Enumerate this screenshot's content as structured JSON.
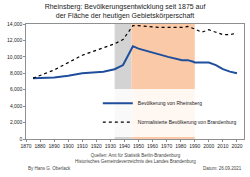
{
  "chart_data": {
    "type": "line",
    "title": "Rheinsberg: Bevölkerungsentwicklung seit 1875 auf der Fläche der heutigen Gebietskörperschaft",
    "x": [
      1875,
      1890,
      1900,
      1910,
      1925,
      1933,
      1939,
      1946,
      1950,
      1964,
      1971,
      1981,
      1985,
      1989,
      1990,
      1995,
      2000,
      2005,
      2010,
      2015,
      2020
    ],
    "series": [
      {
        "name": "Bevölkerung von Rheinsberg",
        "color": "#1f4e9c",
        "line_style": "solid",
        "values": [
          7400,
          7500,
          7700,
          8000,
          8200,
          8500,
          9000,
          11300,
          11000,
          10300,
          10000,
          9600,
          9600,
          9400,
          9300,
          9300,
          9300,
          9000,
          8500,
          8200,
          8000
        ]
      },
      {
        "name": "Normalisierte Bevölkerung von Brandenburg",
        "color": "#000000",
        "line_style": "dot",
        "values": [
          7400,
          8400,
          9300,
          10200,
          11100,
          11600,
          12100,
          13800,
          13800,
          13600,
          13600,
          13600,
          13700,
          13500,
          13400,
          13000,
          13300,
          13000,
          12700,
          12700,
          12900
        ]
      }
    ],
    "periods": [
      {
        "start": 1933,
        "end": 1945,
        "color": "#d3d3d3"
      },
      {
        "start": 1945,
        "end": 1990,
        "color": "#f9c9a8"
      }
    ],
    "xlim": [
      1870,
      2025
    ],
    "xticks": [
      1870,
      1880,
      1890,
      1900,
      1910,
      1920,
      1930,
      1940,
      1950,
      1960,
      1970,
      1980,
      1990,
      2000,
      2010,
      2020
    ],
    "ylim": [
      0,
      14000
    ],
    "yticks": [
      0,
      {
        "value": 2000,
        "label": "2,000"
      },
      {
        "value": 4000,
        "label": "4,000"
      },
      {
        "value": 6000,
        "label": "6,000"
      },
      {
        "value": 8000,
        "label": "8,000"
      },
      {
        "value": 10000,
        "label": "10,000"
      },
      {
        "value": 12000,
        "label": "12,000"
      },
      {
        "value": 14000,
        "label": "14,000"
      }
    ],
    "grid": false,
    "legend": "lower right",
    "sources": [
      "Quellen: Amt für Statistik Berlin-Brandenburg",
      "Historisches Gemeindeverzeichnis des Landes Brandenburg"
    ],
    "author": "By Hans G. Oberlack",
    "date": "Datum: 26.09.2021"
  }
}
